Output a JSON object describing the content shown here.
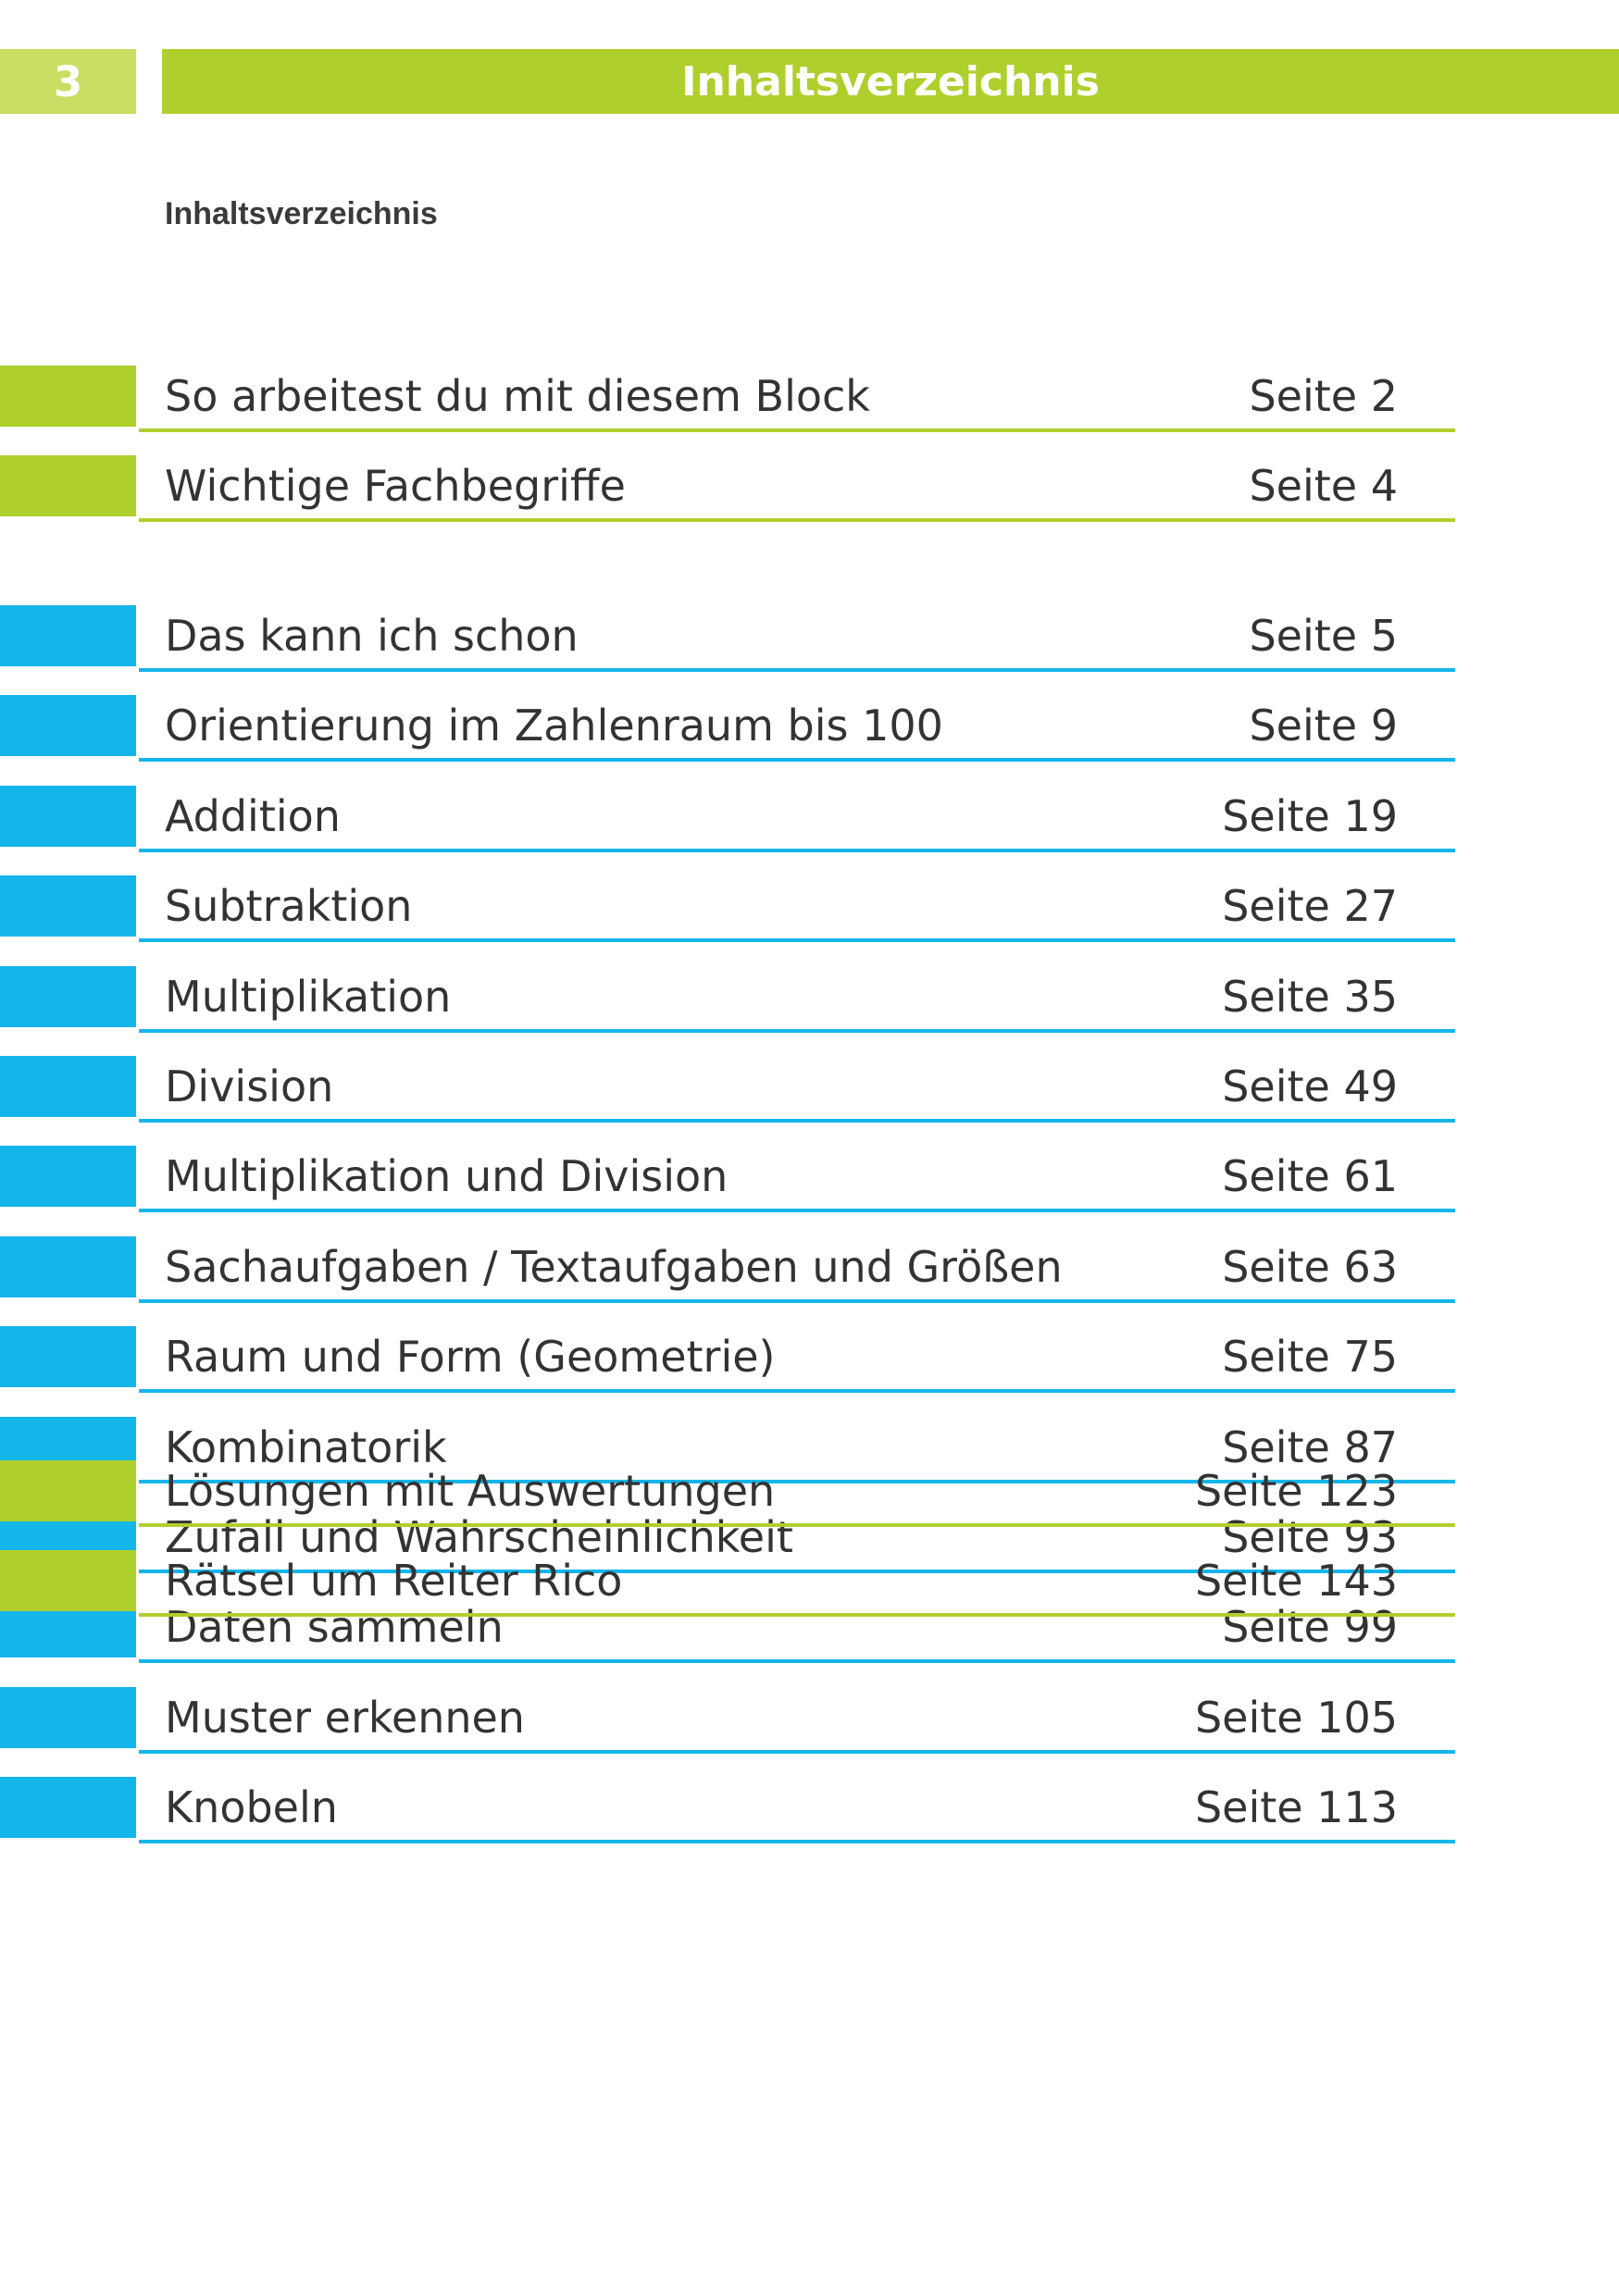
{
  "header": {
    "page_number": "3",
    "title": "Inhaltsverzeichnis"
  },
  "subtitle": "Inhaltsverzeichnis",
  "colors": {
    "green": "#afcf2c",
    "light_green": "#c9de62",
    "blue": "#14b6ea"
  },
  "groups": [
    {
      "color": "green",
      "items": [
        {
          "label": "So arbeitest du mit diesem Block",
          "page": "Seite 2"
        },
        {
          "label": "Wichtige Fachbegriffe",
          "page": "Seite 4"
        }
      ]
    },
    {
      "color": "blue",
      "items": [
        {
          "label": "Das kann ich schon",
          "page": "Seite 5"
        },
        {
          "label": "Orientierung im Zahlenraum bis 100",
          "page": "Seite 9"
        },
        {
          "label": "Addition",
          "page": "Seite 19"
        },
        {
          "label": "Subtraktion",
          "page": "Seite 27"
        },
        {
          "label": "Multiplikation",
          "page": "Seite 35"
        },
        {
          "label": "Division",
          "page": "Seite 49"
        },
        {
          "label": "Multiplikation und Division",
          "page": "Seite 61"
        },
        {
          "label": "Sachaufgaben / Textaufgaben und Größen",
          "page": "Seite 63"
        },
        {
          "label": "Raum und Form (Geometrie)",
          "page": "Seite 75"
        },
        {
          "label": "Kombinatorik",
          "page": "Seite 87"
        },
        {
          "label": "Zufall und Wahrscheinlichkeit",
          "page": "Seite 93"
        },
        {
          "label": "Daten sammeln",
          "page": "Seite 99"
        },
        {
          "label": "Muster erkennen",
          "page": "Seite 105"
        },
        {
          "label": "Knobeln",
          "page": "Seite 113"
        }
      ]
    },
    {
      "color": "green",
      "items": [
        {
          "label": "Lösungen mit Auswertungen",
          "page": "Seite 123"
        },
        {
          "label": "Rätsel um Reiter Rico",
          "page": "Seite 143"
        }
      ]
    }
  ]
}
